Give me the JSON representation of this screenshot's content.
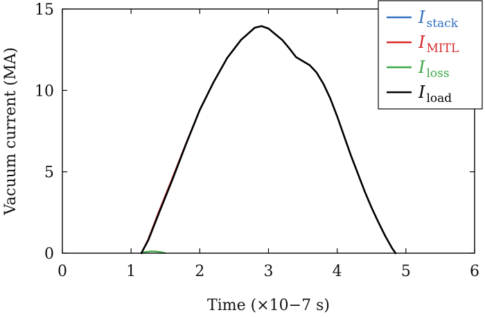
{
  "chart_data": {
    "type": "line",
    "title": "",
    "xlabel": "Time (×10−7 s)",
    "ylabel": "Vacuum current (MA)",
    "xlim": [
      0,
      6
    ],
    "ylim": [
      0,
      15
    ],
    "xticks": [
      "0",
      "1",
      "2",
      "3",
      "4",
      "5",
      "6"
    ],
    "yticks": [
      "0",
      "5",
      "10",
      "15"
    ],
    "grid": false,
    "legend_position": "top-right",
    "series": [
      {
        "name": "I",
        "subscript": "stack",
        "color": "#2f6fbf",
        "x": [
          1.15,
          1.25,
          1.4,
          1.6,
          1.8,
          2.0,
          2.2,
          2.4,
          2.6,
          2.8,
          2.9,
          3.0,
          3.1,
          3.2,
          3.3,
          3.4,
          3.5,
          3.6,
          3.7,
          3.8,
          3.9,
          4.0,
          4.1,
          4.2,
          4.3,
          4.4,
          4.5,
          4.6,
          4.7,
          4.8,
          4.85
        ],
        "y": [
          0,
          0.8,
          2.4,
          4.5,
          6.7,
          8.8,
          10.5,
          12.0,
          13.1,
          13.85,
          13.95,
          13.8,
          13.45,
          13.1,
          12.6,
          12.05,
          11.8,
          11.55,
          11.1,
          10.4,
          9.5,
          8.4,
          7.2,
          6.0,
          4.9,
          3.8,
          2.8,
          1.9,
          1.05,
          0.3,
          0
        ]
      },
      {
        "name": "I",
        "subscript": "MITL",
        "color": "#d62728",
        "x": [
          1.15,
          1.25,
          1.4,
          1.6,
          1.8,
          2.0,
          2.2,
          2.4,
          2.6,
          2.8,
          2.9,
          3.0,
          3.1,
          3.2,
          3.3,
          3.4,
          3.5,
          3.6,
          3.7,
          3.8,
          3.9,
          4.0,
          4.1,
          4.2,
          4.3,
          4.4,
          4.5,
          4.6,
          4.7,
          4.8,
          4.85
        ],
        "y": [
          0,
          0.85,
          2.5,
          4.6,
          6.75,
          8.8,
          10.5,
          12.0,
          13.1,
          13.85,
          13.95,
          13.8,
          13.45,
          13.1,
          12.6,
          12.05,
          11.8,
          11.55,
          11.1,
          10.4,
          9.5,
          8.4,
          7.2,
          6.0,
          4.9,
          3.8,
          2.8,
          1.9,
          1.05,
          0.3,
          0
        ]
      },
      {
        "name": "I",
        "subscript": "loss",
        "color": "#3aa845",
        "x": [
          1.15,
          1.22,
          1.3,
          1.38,
          1.45,
          1.5
        ],
        "y": [
          0,
          0.08,
          0.12,
          0.1,
          0.05,
          0
        ]
      },
      {
        "name": "I",
        "subscript": "load",
        "color": "#000000",
        "x": [
          1.15,
          1.25,
          1.4,
          1.6,
          1.8,
          2.0,
          2.2,
          2.4,
          2.6,
          2.8,
          2.9,
          3.0,
          3.1,
          3.2,
          3.3,
          3.4,
          3.5,
          3.6,
          3.7,
          3.8,
          3.9,
          4.0,
          4.1,
          4.2,
          4.3,
          4.4,
          4.5,
          4.6,
          4.7,
          4.8,
          4.85
        ],
        "y": [
          0,
          0.8,
          2.4,
          4.5,
          6.7,
          8.8,
          10.5,
          12.0,
          13.1,
          13.85,
          13.95,
          13.8,
          13.45,
          13.1,
          12.6,
          12.05,
          11.8,
          11.55,
          11.1,
          10.4,
          9.5,
          8.4,
          7.2,
          6.0,
          4.9,
          3.8,
          2.8,
          1.9,
          1.05,
          0.3,
          0
        ]
      }
    ]
  }
}
